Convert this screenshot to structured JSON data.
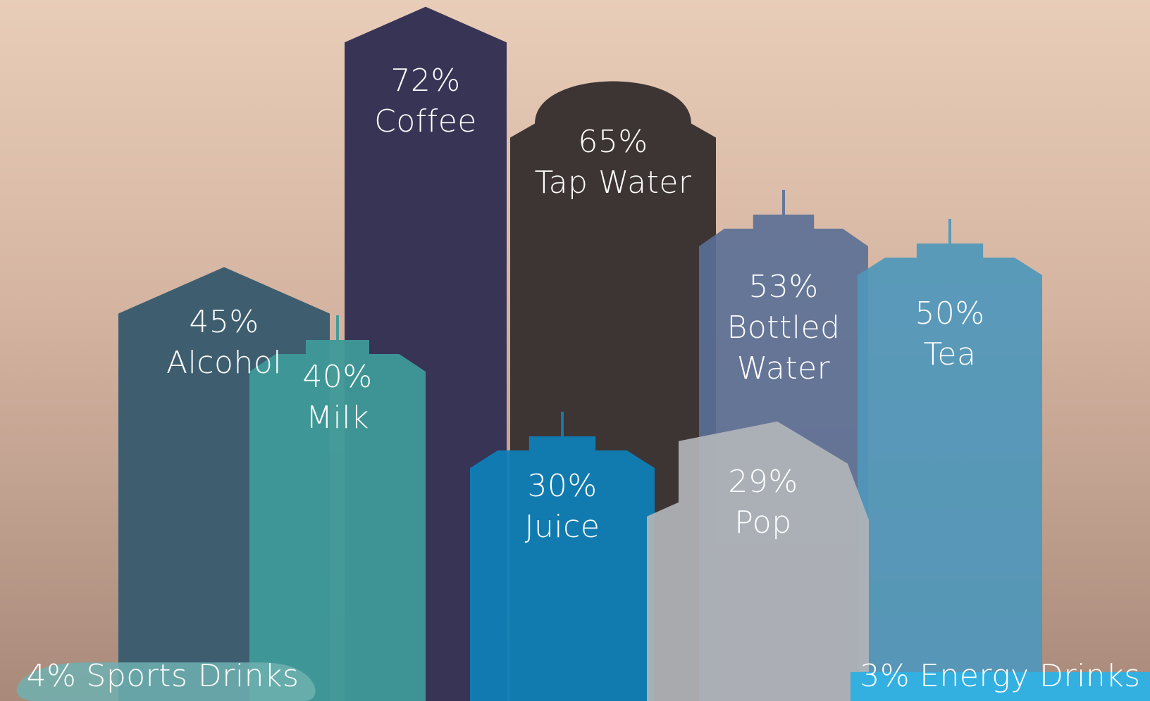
{
  "chart_data": {
    "type": "building",
    "categories": [
      "Coffee",
      "Tap Water",
      "Alcohol",
      "Milk",
      "Bottled Water",
      "Tea",
      "Juice",
      "Pop",
      "Sports Drinks",
      "Energy Drinks"
    ],
    "values": [
      72,
      65,
      45,
      40,
      53,
      50,
      30,
      29,
      4,
      3
    ],
    "value_labels": [
      "72%",
      "65%",
      "45%",
      "40%",
      "53%",
      "50%",
      "30%",
      "29%",
      "4%",
      "3%"
    ],
    "colors": [
      "#383456",
      "#3d3534",
      "#3e5e70",
      "#3e9a98",
      "#5a6f96",
      "#4f97bb",
      "#0f7fb6",
      "#b0b4b8",
      "#6fb0b0",
      "#33b0e0"
    ]
  }
}
